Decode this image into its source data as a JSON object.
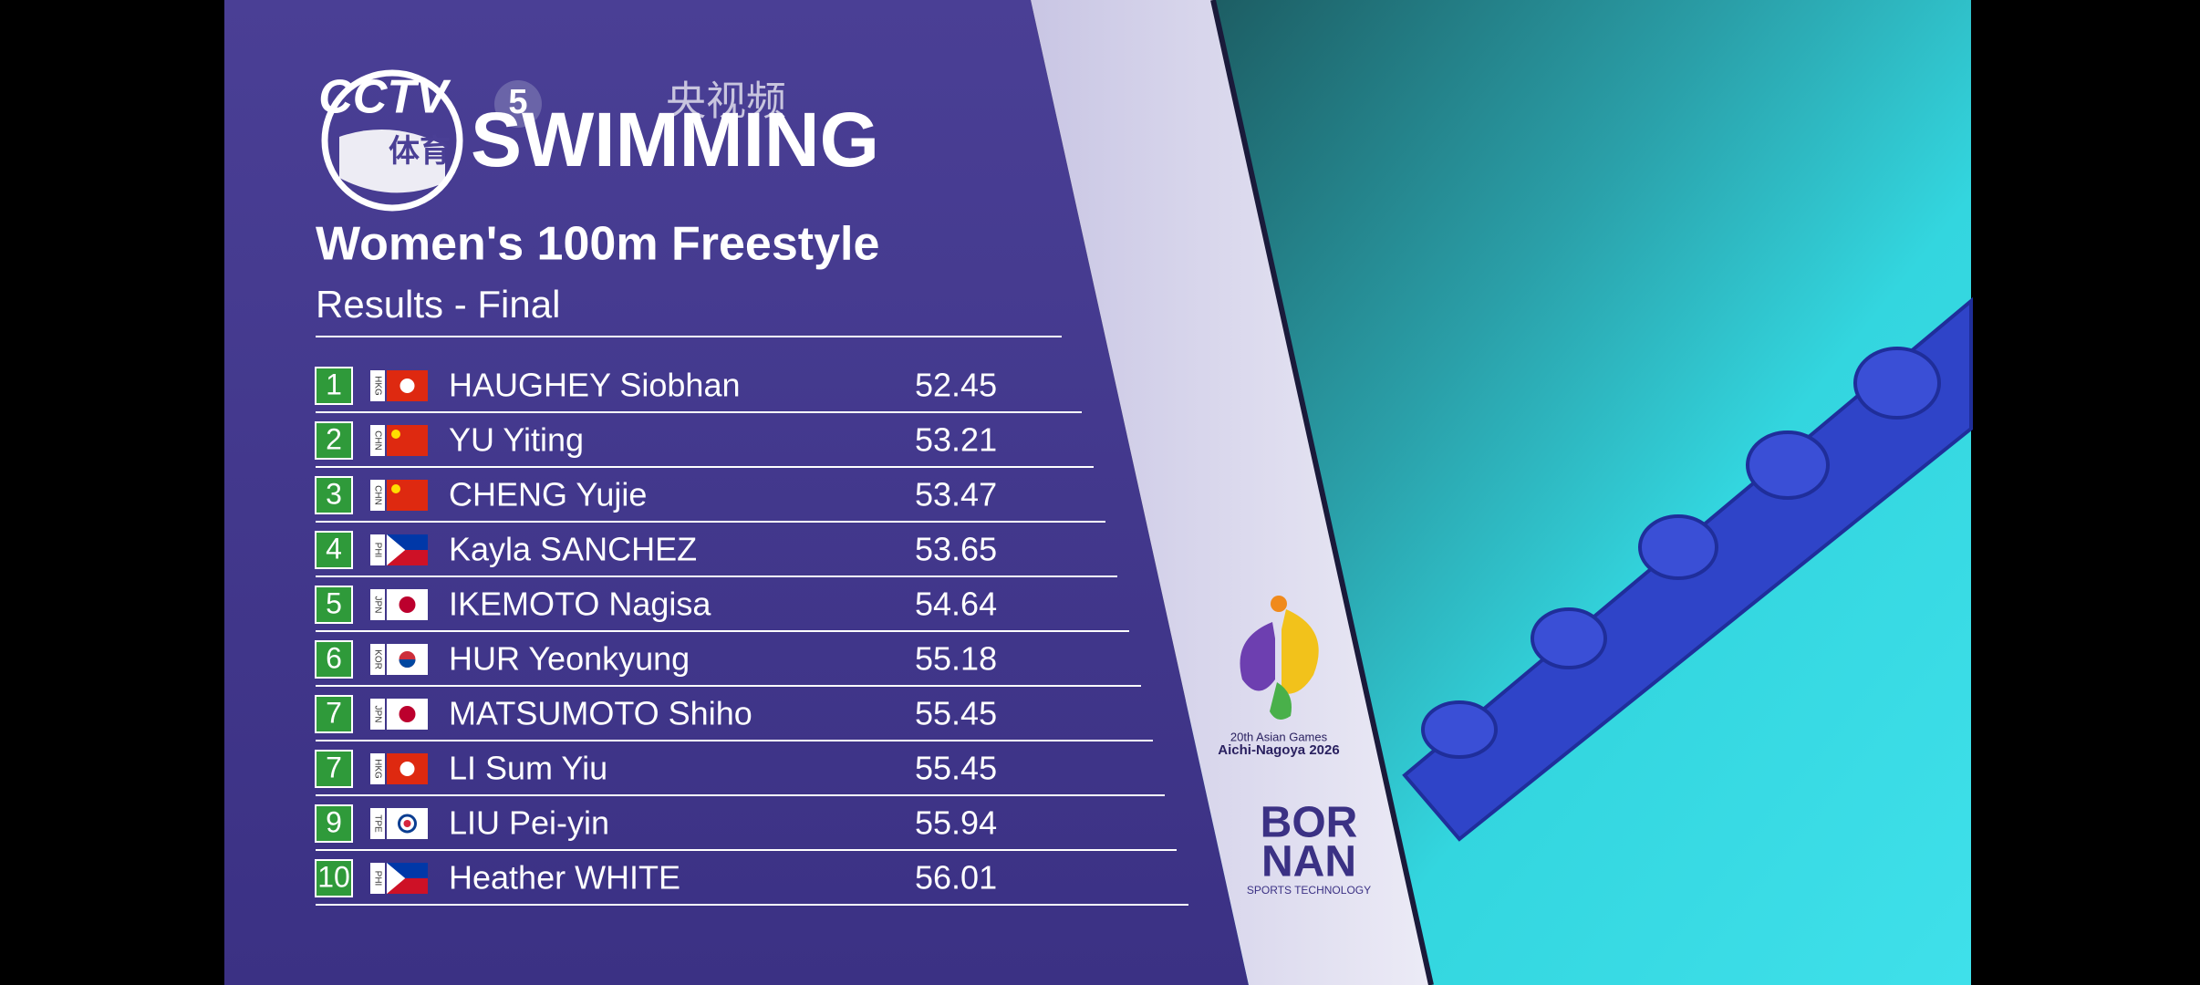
{
  "header": {
    "channel_logo": "CCTV",
    "channel_number": "5",
    "channel_sub": "体育",
    "app": "央视频",
    "sport": "SWIMMING",
    "event": "Women's 100m Freestyle",
    "phase": "Results - Final"
  },
  "results": {
    "rows": [
      {
        "rank": "1",
        "noc": "HKG",
        "name": "HAUGHEY Siobhan",
        "time": "52.45"
      },
      {
        "rank": "2",
        "noc": "CHN",
        "name": "YU Yiting",
        "time": "53.21"
      },
      {
        "rank": "3",
        "noc": "CHN",
        "name": "CHENG Yujie",
        "time": "53.47"
      },
      {
        "rank": "4",
        "noc": "PHI",
        "name": "Kayla SANCHEZ",
        "time": "53.65"
      },
      {
        "rank": "5",
        "noc": "JPN",
        "name": "IKEMOTO Nagisa",
        "time": "54.64"
      },
      {
        "rank": "6",
        "noc": "KOR",
        "name": "HUR Yeonkyung",
        "time": "55.18"
      },
      {
        "rank": "7",
        "noc": "JPN",
        "name": "MATSUMOTO Shiho",
        "time": "55.45"
      },
      {
        "rank": "7",
        "noc": "HKG",
        "name": "LI Sum Yiu",
        "time": "55.45"
      },
      {
        "rank": "9",
        "noc": "TPE",
        "name": "LIU Pei-yin",
        "time": "55.94"
      },
      {
        "rank": "10",
        "noc": "PHI",
        "name": "Heather WHITE",
        "time": "56.01"
      }
    ]
  },
  "sponsors": {
    "games_edition": "20th Asian Games",
    "games_host": "Aichi-Nagoya 2026",
    "timing_line1": "BOR",
    "timing_line2": "NAN",
    "timing_tagline": "SPORTS TECHNOLOGY"
  }
}
